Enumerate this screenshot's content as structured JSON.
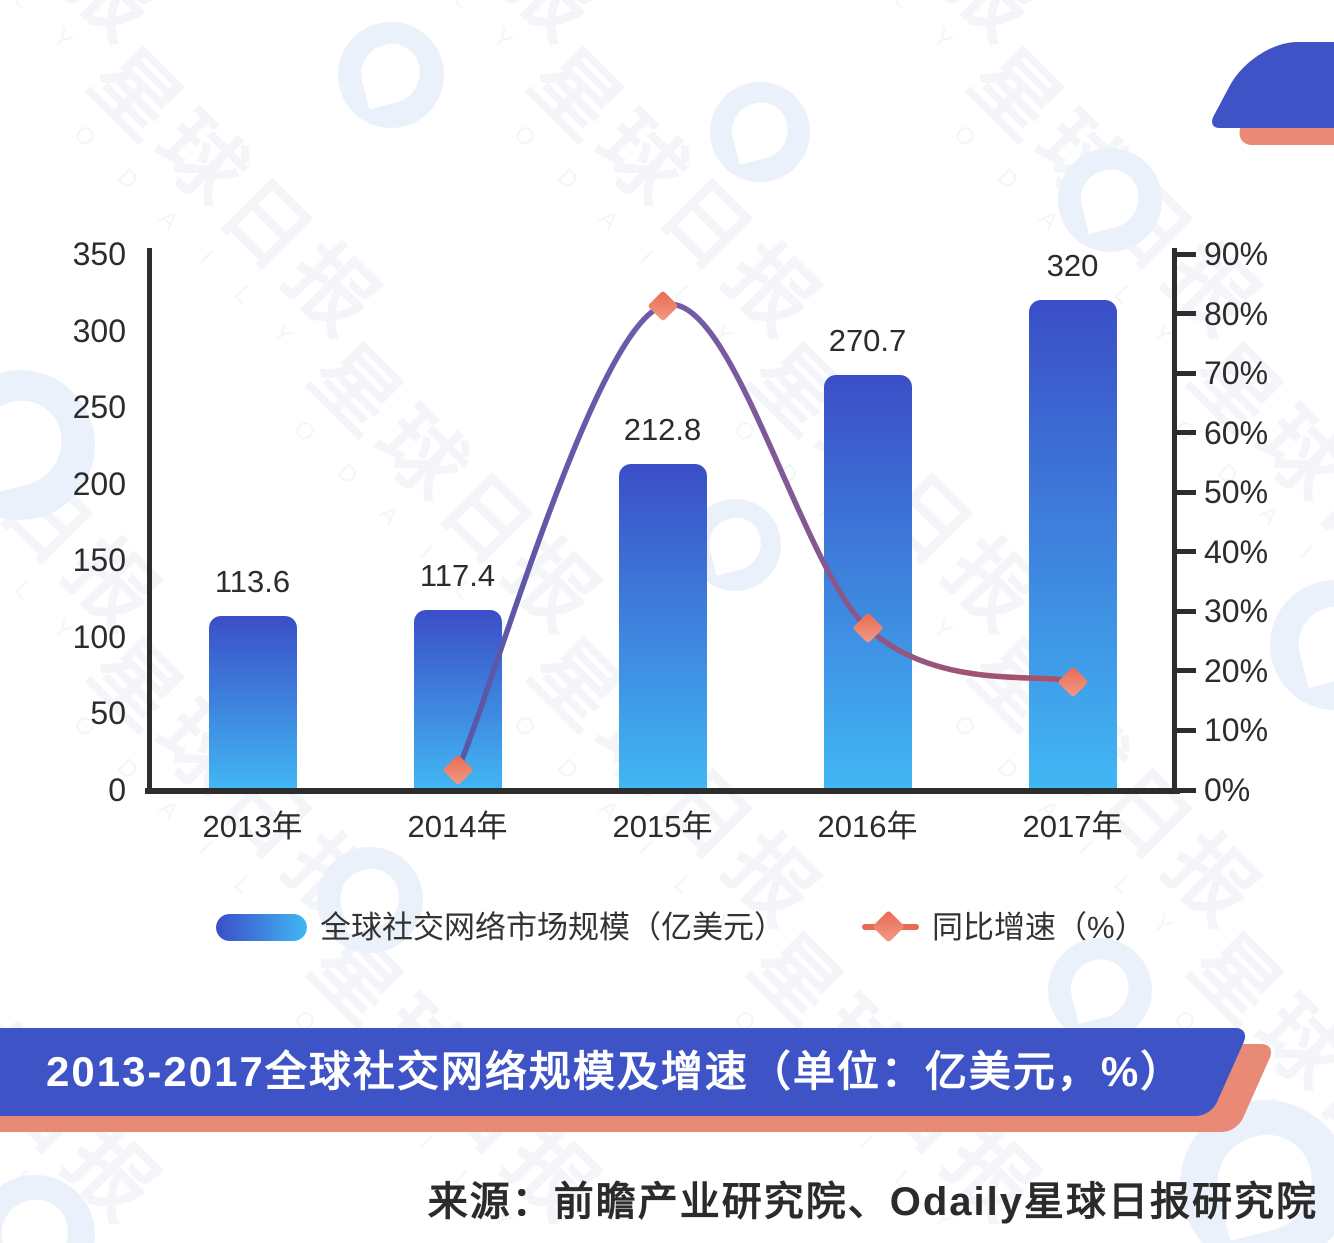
{
  "watermark": {
    "cn": "星球日报",
    "en": "O D A I L Y"
  },
  "chart_data": {
    "type": "bar+line",
    "title": "2013-2017全球社交网络规模及增速（单位：亿美元，%）",
    "categories": [
      "2013年",
      "2014年",
      "2015年",
      "2016年",
      "2017年"
    ],
    "series": [
      {
        "name": "全球社交网络市场规模（亿美元）",
        "type": "bar",
        "y_axis": "left",
        "values": [
          113.6,
          117.4,
          212.8,
          270.7,
          320
        ],
        "data_labels": [
          "113.6",
          "117.4",
          "212.8",
          "270.7",
          "320"
        ]
      },
      {
        "name": "同比增速（%）",
        "type": "line",
        "y_axis": "right",
        "values": [
          null,
          3.3,
          81.3,
          27.2,
          18.2
        ]
      }
    ],
    "left_axis": {
      "min": 0,
      "max": 350,
      "step": 50,
      "tick_labels": [
        "0",
        "50",
        "100",
        "150",
        "200",
        "250",
        "300",
        "350"
      ]
    },
    "right_axis": {
      "min": 0,
      "max": 90,
      "step": 10,
      "unit": "%",
      "tick_labels": [
        "0%",
        "10%",
        "20%",
        "30%",
        "40%",
        "50%",
        "60%",
        "70%",
        "80%",
        "90%"
      ]
    },
    "grid": false,
    "legend_position": "bottom",
    "colors": {
      "bar_gradient_top": "#3b4ec7",
      "bar_gradient_bottom": "#41b7f4",
      "line_gradient_start": "#5a55a6",
      "line_gradient_mid": "#6f5cab",
      "line_gradient_end": "#b05060",
      "marker": "#e86a52",
      "marker_light": "#f29b85",
      "axis": "#2d2d2d",
      "banner_blue": "#3e53c6",
      "banner_coral": "#e98a76",
      "watermark_blue": "#eaf1fa"
    }
  },
  "legend": {
    "bar_label": "全球社交网络市场规模（亿美元）",
    "line_label": "同比增速（%）"
  },
  "banner": {
    "title": "2013-2017全球社交网络规模及增速（单位：亿美元，%）"
  },
  "source": {
    "text": "来源：前瞻产业研究院、Odaily星球日报研究院"
  }
}
